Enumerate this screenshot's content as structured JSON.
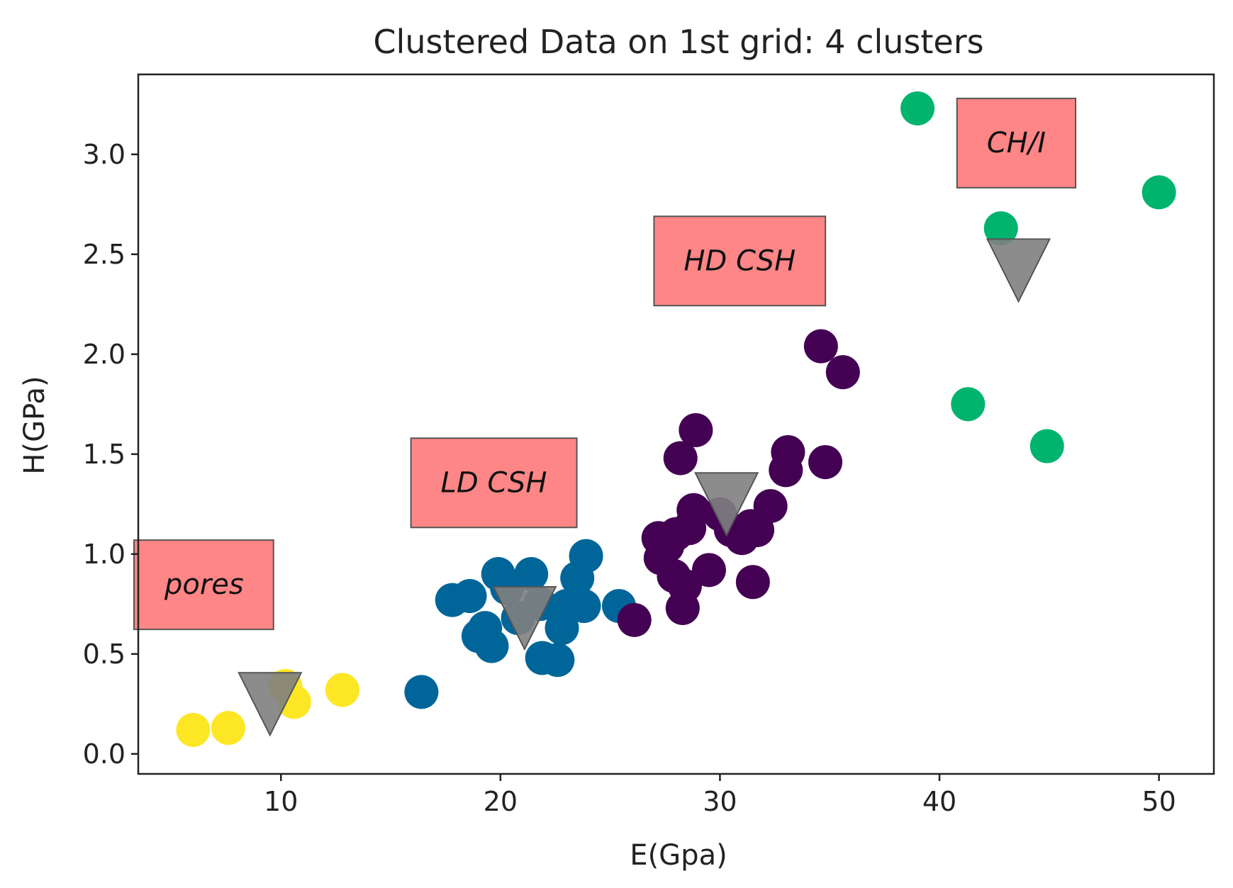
{
  "chart_data": {
    "type": "scatter",
    "title": "Clustered Data on 1st grid: 4 clusters",
    "xlabel": "E(Gpa)",
    "ylabel": "H(GPa)",
    "xlim": [
      3.5,
      52.5
    ],
    "ylim": [
      -0.1,
      3.4
    ],
    "xticks": [
      10,
      20,
      30,
      40,
      50
    ],
    "yticks": [
      0.0,
      0.5,
      1.0,
      1.5,
      2.0,
      2.5,
      3.0
    ],
    "xtick_labels": [
      "10",
      "20",
      "30",
      "40",
      "50"
    ],
    "ytick_labels": [
      "0.0",
      "0.5",
      "1.0",
      "1.5",
      "2.0",
      "2.5",
      "3.0"
    ],
    "grid": false,
    "series": [
      {
        "name": "pores",
        "color": "#fde725",
        "points": [
          [
            6.0,
            0.12
          ],
          [
            7.6,
            0.13
          ],
          [
            10.2,
            0.34
          ],
          [
            10.6,
            0.26
          ],
          [
            12.8,
            0.32
          ]
        ]
      },
      {
        "name": "LD CSH",
        "color": "#006699",
        "points": [
          [
            16.4,
            0.31
          ],
          [
            17.8,
            0.77
          ],
          [
            18.6,
            0.79
          ],
          [
            19.3,
            0.63
          ],
          [
            19.0,
            0.59
          ],
          [
            19.6,
            0.54
          ],
          [
            19.9,
            0.9
          ],
          [
            20.3,
            0.83
          ],
          [
            20.8,
            0.68
          ],
          [
            21.4,
            0.9
          ],
          [
            21.8,
            0.75
          ],
          [
            21.9,
            0.48
          ],
          [
            22.6,
            0.47
          ],
          [
            22.8,
            0.63
          ],
          [
            23.0,
            0.74
          ],
          [
            23.5,
            0.88
          ],
          [
            23.8,
            0.74
          ],
          [
            23.9,
            0.99
          ],
          [
            25.4,
            0.74
          ]
        ]
      },
      {
        "name": "HD CSH",
        "color": "#440154",
        "points": [
          [
            26.1,
            0.67
          ],
          [
            27.2,
            1.08
          ],
          [
            27.3,
            0.98
          ],
          [
            27.6,
            1.04
          ],
          [
            27.9,
            0.89
          ],
          [
            28.0,
            1.1
          ],
          [
            28.2,
            1.48
          ],
          [
            28.3,
            0.73
          ],
          [
            28.4,
            0.84
          ],
          [
            28.6,
            1.13
          ],
          [
            28.8,
            1.22
          ],
          [
            28.9,
            1.62
          ],
          [
            29.5,
            0.92
          ],
          [
            30.0,
            1.2
          ],
          [
            30.5,
            1.12
          ],
          [
            31.0,
            1.08
          ],
          [
            31.4,
            1.14
          ],
          [
            31.5,
            0.86
          ],
          [
            31.7,
            1.12
          ],
          [
            32.3,
            1.24
          ],
          [
            33.0,
            1.42
          ],
          [
            33.1,
            1.51
          ],
          [
            34.6,
            2.04
          ],
          [
            34.8,
            1.46
          ],
          [
            35.6,
            1.91
          ]
        ]
      },
      {
        "name": "CH/I",
        "color": "#00b46e",
        "points": [
          [
            39.0,
            3.23
          ],
          [
            41.3,
            1.75
          ],
          [
            42.8,
            2.63
          ],
          [
            44.9,
            1.54
          ],
          [
            50.0,
            2.81
          ]
        ]
      }
    ],
    "centroids": {
      "color": "#808080",
      "points": [
        [
          9.5,
          0.25
        ],
        [
          21.1,
          0.68
        ],
        [
          30.3,
          1.25
        ],
        [
          43.6,
          2.42
        ]
      ]
    },
    "annotations": [
      {
        "text": "pores",
        "x": 6.5,
        "y": 0.85
      },
      {
        "text": "LD CSH",
        "x": 19.7,
        "y": 1.36
      },
      {
        "text": "HD CSH",
        "x": 30.9,
        "y": 2.47
      },
      {
        "text": "CH/I",
        "x": 43.5,
        "y": 3.06
      }
    ],
    "annotation_box_color": "#ff8080"
  }
}
